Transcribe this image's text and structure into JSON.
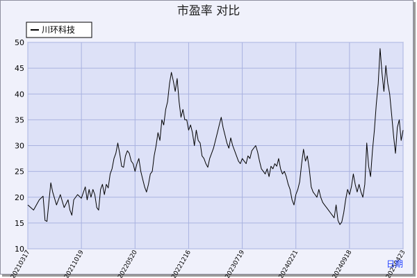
{
  "chart_data": {
    "type": "line",
    "title": "市盈率 对比",
    "xlabel": "日期",
    "ylabel": "",
    "ylim": [
      10,
      50
    ],
    "y_ticks": [
      10,
      15,
      20,
      25,
      30,
      35,
      40,
      45,
      50
    ],
    "x_tick_labels": [
      "20210317",
      "20211019",
      "20220520",
      "20221216",
      "20230719",
      "20240221",
      "20240918",
      "20250423"
    ],
    "grid": true,
    "legend_position": "top-left",
    "colors": {
      "plot_bg": "#dde1f7",
      "grid": "#a9b2e0",
      "line": "#000000",
      "xlabel": "#1f3fff"
    },
    "series": [
      {
        "name": "川环科技",
        "points": [
          [
            0,
            18.5
          ],
          [
            3,
            17.5
          ],
          [
            6,
            19.5
          ],
          [
            8,
            20.2
          ],
          [
            9,
            15.5
          ],
          [
            10,
            15.3
          ],
          [
            11,
            19.0
          ],
          [
            12,
            22.8
          ],
          [
            13,
            21.0
          ],
          [
            15,
            18.5
          ],
          [
            17,
            20.5
          ],
          [
            19,
            18.0
          ],
          [
            21,
            19.5
          ],
          [
            22,
            17.5
          ],
          [
            23,
            16.5
          ],
          [
            24,
            19.5
          ],
          [
            26,
            20.5
          ],
          [
            28,
            19.8
          ],
          [
            30,
            22.0
          ],
          [
            31,
            19.5
          ],
          [
            32,
            21.5
          ],
          [
            33,
            20.0
          ],
          [
            34,
            21.5
          ],
          [
            35,
            20.5
          ],
          [
            36,
            18.0
          ],
          [
            37,
            17.5
          ],
          [
            38,
            21.5
          ],
          [
            39,
            22.5
          ],
          [
            40,
            20.5
          ],
          [
            41,
            22.5
          ],
          [
            42,
            21.8
          ],
          [
            43,
            24.5
          ],
          [
            44,
            25.5
          ],
          [
            45,
            27.5
          ],
          [
            46,
            28.5
          ],
          [
            47,
            30.5
          ],
          [
            48,
            28.5
          ],
          [
            49,
            26.0
          ],
          [
            50,
            25.8
          ],
          [
            51,
            28.0
          ],
          [
            52,
            29.0
          ],
          [
            53,
            28.5
          ],
          [
            54,
            27.0
          ],
          [
            55,
            26.5
          ],
          [
            56,
            25.0
          ],
          [
            57,
            26.5
          ],
          [
            58,
            27.5
          ],
          [
            59,
            25.0
          ],
          [
            60,
            23.5
          ],
          [
            61,
            22.0
          ],
          [
            62,
            21.0
          ],
          [
            63,
            22.5
          ],
          [
            64,
            24.5
          ],
          [
            65,
            25.0
          ],
          [
            66,
            28.0
          ],
          [
            67,
            30.0
          ],
          [
            68,
            32.5
          ],
          [
            69,
            31.0
          ],
          [
            70,
            35.0
          ],
          [
            71,
            34.0
          ],
          [
            72,
            37.0
          ],
          [
            73,
            38.5
          ],
          [
            74,
            42.0
          ],
          [
            75,
            44.2
          ],
          [
            76,
            42.5
          ],
          [
            77,
            40.5
          ],
          [
            78,
            43.0
          ],
          [
            79,
            38.5
          ],
          [
            80,
            35.5
          ],
          [
            81,
            37.0
          ],
          [
            82,
            35.0
          ],
          [
            83,
            35.0
          ],
          [
            84,
            33.0
          ],
          [
            85,
            34.0
          ],
          [
            86,
            32.5
          ],
          [
            87,
            30.0
          ],
          [
            88,
            33.0
          ],
          [
            89,
            31.0
          ],
          [
            90,
            30.5
          ],
          [
            91,
            28.0
          ],
          [
            92,
            27.5
          ],
          [
            93,
            26.5
          ],
          [
            94,
            25.8
          ],
          [
            95,
            27.5
          ],
          [
            96,
            28.5
          ],
          [
            97,
            29.5
          ],
          [
            98,
            31.0
          ],
          [
            99,
            32.5
          ],
          [
            100,
            34.0
          ],
          [
            101,
            35.5
          ],
          [
            102,
            33.5
          ],
          [
            103,
            32.0
          ],
          [
            104,
            30.5
          ],
          [
            105,
            29.5
          ],
          [
            106,
            31.5
          ],
          [
            107,
            30.0
          ],
          [
            108,
            29.0
          ],
          [
            109,
            28.0
          ],
          [
            110,
            27.0
          ],
          [
            111,
            26.5
          ],
          [
            112,
            27.5
          ],
          [
            113,
            27.0
          ],
          [
            114,
            26.5
          ],
          [
            115,
            28.0
          ],
          [
            116,
            27.5
          ],
          [
            117,
            29.0
          ],
          [
            118,
            29.5
          ],
          [
            119,
            30.0
          ],
          [
            120,
            28.8
          ],
          [
            121,
            27.0
          ],
          [
            122,
            25.5
          ],
          [
            123,
            25.0
          ],
          [
            124,
            24.5
          ],
          [
            125,
            25.5
          ],
          [
            126,
            24.0
          ],
          [
            127,
            26.0
          ],
          [
            128,
            25.5
          ],
          [
            129,
            26.5
          ],
          [
            130,
            26.0
          ],
          [
            131,
            27.5
          ],
          [
            132,
            25.5
          ],
          [
            133,
            24.5
          ],
          [
            134,
            25.0
          ],
          [
            135,
            24.0
          ],
          [
            136,
            22.5
          ],
          [
            137,
            21.5
          ],
          [
            138,
            19.5
          ],
          [
            139,
            18.5
          ],
          [
            140,
            20.5
          ],
          [
            141,
            21.5
          ],
          [
            142,
            23.0
          ],
          [
            143,
            26.5
          ],
          [
            144,
            29.3
          ],
          [
            145,
            27.0
          ],
          [
            146,
            28.0
          ],
          [
            147,
            25.5
          ],
          [
            148,
            22.0
          ],
          [
            149,
            21.0
          ],
          [
            150,
            20.5
          ],
          [
            151,
            20.0
          ],
          [
            152,
            21.5
          ],
          [
            153,
            20.0
          ],
          [
            154,
            19.0
          ],
          [
            155,
            18.5
          ],
          [
            156,
            18.0
          ],
          [
            157,
            17.5
          ],
          [
            158,
            17.0
          ],
          [
            159,
            16.5
          ],
          [
            160,
            16.0
          ],
          [
            161,
            18.5
          ],
          [
            162,
            15.5
          ],
          [
            163,
            14.7
          ],
          [
            164,
            15.2
          ],
          [
            165,
            17.0
          ],
          [
            166,
            19.5
          ],
          [
            167,
            21.5
          ],
          [
            168,
            20.5
          ],
          [
            169,
            22.0
          ],
          [
            170,
            24.5
          ],
          [
            171,
            22.5
          ],
          [
            172,
            21.0
          ],
          [
            173,
            22.5
          ],
          [
            174,
            21.0
          ],
          [
            175,
            20.0
          ],
          [
            176,
            22.5
          ],
          [
            177,
            30.5
          ],
          [
            178,
            26.0
          ],
          [
            179,
            24.0
          ],
          [
            180,
            29.0
          ],
          [
            181,
            33.0
          ],
          [
            182,
            38.0
          ],
          [
            183,
            42.0
          ],
          [
            184,
            48.8
          ],
          [
            185,
            44.0
          ],
          [
            186,
            40.5
          ],
          [
            187,
            45.5
          ],
          [
            188,
            42.0
          ],
          [
            189,
            40.0
          ],
          [
            190,
            36.0
          ],
          [
            191,
            32.0
          ],
          [
            192,
            28.5
          ],
          [
            193,
            33.5
          ],
          [
            194,
            35.0
          ],
          [
            195,
            31.0
          ],
          [
            196,
            33.0
          ]
        ]
      }
    ]
  }
}
